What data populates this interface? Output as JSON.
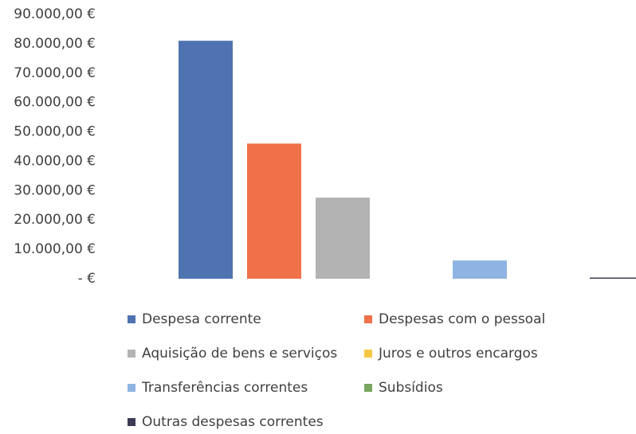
{
  "chart_data": {
    "type": "bar",
    "series": [
      {
        "name": "Despesa corrente",
        "color": "#4f72b0",
        "values": [
          81000
        ]
      },
      {
        "name": "Despesas com o pessoal",
        "color": "#f0704a",
        "values": [
          46000
        ]
      },
      {
        "name": "Aquisição de bens e serviços",
        "color": "#b3b3b3",
        "values": [
          27600
        ]
      },
      {
        "name": "Juros e outros encargos",
        "color": "#f5c842",
        "values": [
          0
        ]
      },
      {
        "name": "Transferências correntes",
        "color": "#8fb4e3",
        "values": [
          6200
        ]
      },
      {
        "name": "Subsídios",
        "color": "#7aa660",
        "values": [
          0
        ]
      },
      {
        "name": "Outras despesas correntes",
        "color": "#3b3b55",
        "values": [
          400
        ]
      }
    ],
    "ylim": [
      0,
      90000
    ],
    "yticks": [
      {
        "value": 0,
        "label": "-   €"
      },
      {
        "value": 10000,
        "label": "10.000,00 €"
      },
      {
        "value": 20000,
        "label": "20.000,00 €"
      },
      {
        "value": 30000,
        "label": "30.000,00 €"
      },
      {
        "value": 40000,
        "label": "40.000,00 €"
      },
      {
        "value": 50000,
        "label": "50.000,00 €"
      },
      {
        "value": 60000,
        "label": "60.000,00 €"
      },
      {
        "value": 70000,
        "label": "70.000,00 €"
      },
      {
        "value": 80000,
        "label": "80.000,00 €"
      },
      {
        "value": 90000,
        "label": "90.000,00 €"
      }
    ]
  }
}
